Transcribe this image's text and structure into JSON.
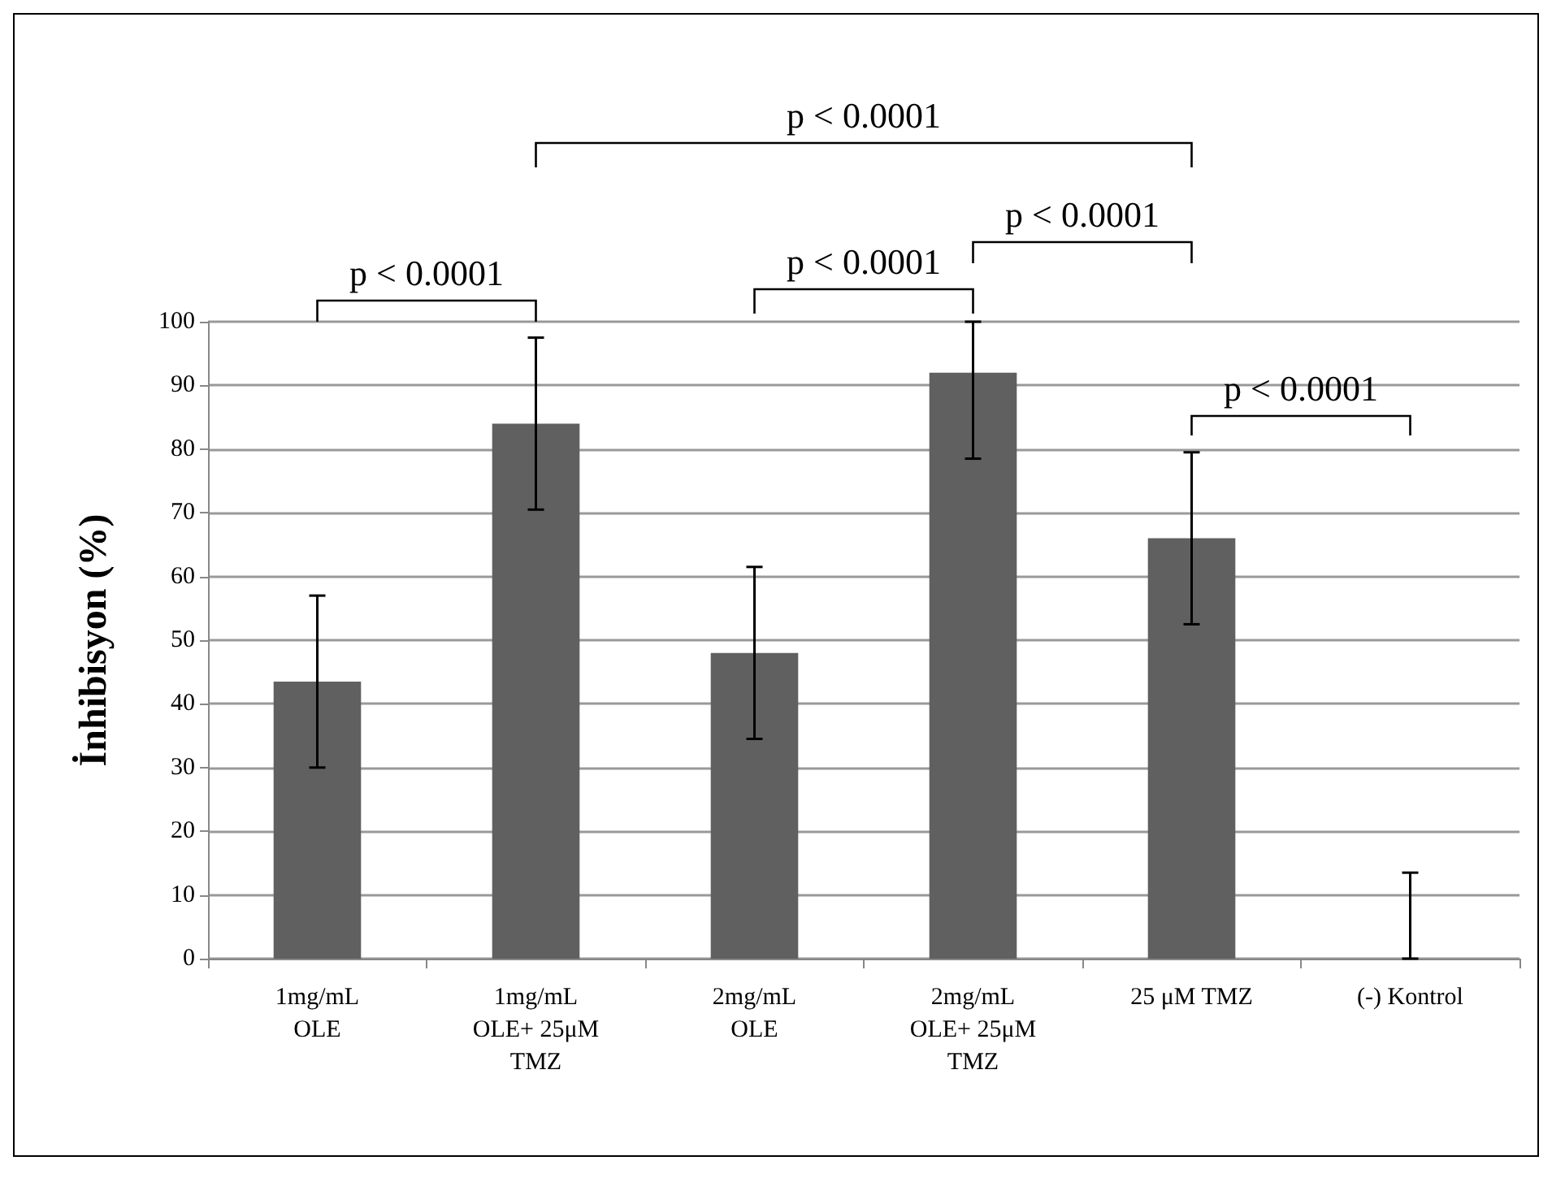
{
  "chart_data": {
    "type": "bar",
    "ylabel": "İnhibisyon (%)",
    "categories": [
      "1mg/mL\nOLE",
      "1mg/mL\nOLE+ 25μM\nTMZ",
      "2mg/mL\nOLE",
      "2mg/mL\nOLE+ 25μM\nTMZ",
      "25 μM TMZ",
      "(-) Kontrol"
    ],
    "values": [
      43.5,
      84,
      48,
      92,
      66,
      0
    ],
    "errors": [
      13.5,
      13.5,
      13.5,
      [
        78.5,
        100
      ],
      13.5,
      [
        0,
        13.5
      ]
    ],
    "color": "#606060",
    "ylim": [
      0,
      100
    ],
    "yticks": [
      0,
      10,
      20,
      30,
      40,
      50,
      60,
      70,
      80,
      90,
      100
    ],
    "grid": "y",
    "annotations": [
      "p < 0.0001",
      "p < 0.0001",
      "p < 0.0001",
      "p < 0.0001",
      "p < 0.0001"
    ]
  }
}
